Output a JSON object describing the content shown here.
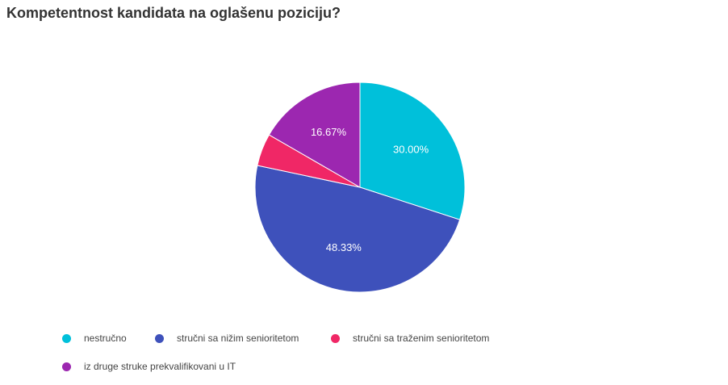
{
  "title": "Kompetentnost kandidata na oglašenu poziciju?",
  "chart_data": {
    "type": "pie",
    "title": "Kompetentnost kandidata na oglašenu poziciju?",
    "categories": [
      "nestručno",
      "stručni sa nižim senioritetom",
      "stručni sa traženim senioritetom",
      "iz druge struke prekvalifikovani u IT"
    ],
    "values": [
      30.0,
      48.33,
      5.0,
      16.67
    ],
    "labels": [
      "30.00%",
      "48.33%",
      "",
      "16.67%"
    ],
    "colors": [
      "#00c0da",
      "#3e51bb",
      "#f02766",
      "#9c27b0"
    ],
    "legend_position": "bottom"
  }
}
